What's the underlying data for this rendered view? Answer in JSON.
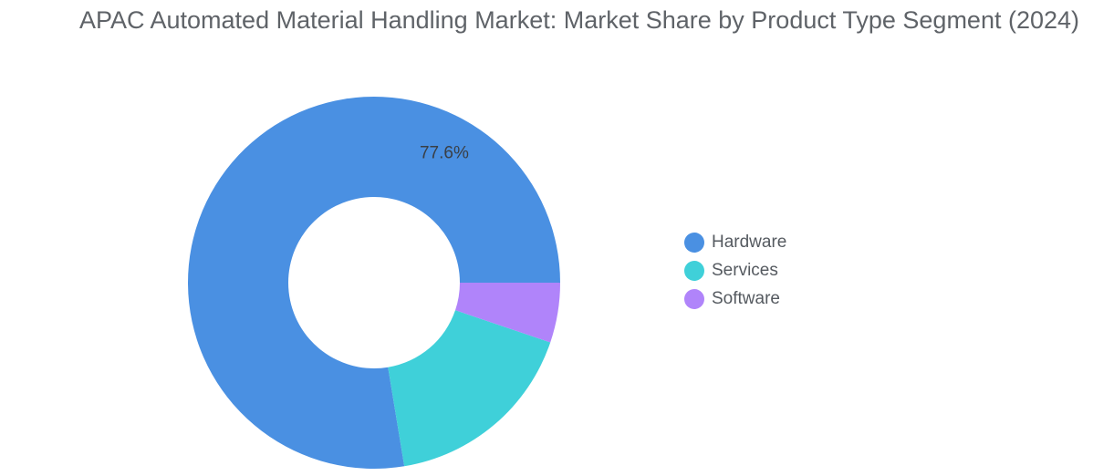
{
  "chart_data": {
    "type": "pie",
    "title": "APAC Automated Material Handling Market: Market Share by Product Type Segment (2024)",
    "categories": [
      "Hardware",
      "Services",
      "Software"
    ],
    "values": [
      77.6,
      17.2,
      5.2
    ],
    "colors": [
      "#4a90e2",
      "#3fd0d9",
      "#b084fa"
    ],
    "data_labels": [
      "77.6%",
      "",
      ""
    ],
    "donut": true,
    "legend_position": "right"
  }
}
